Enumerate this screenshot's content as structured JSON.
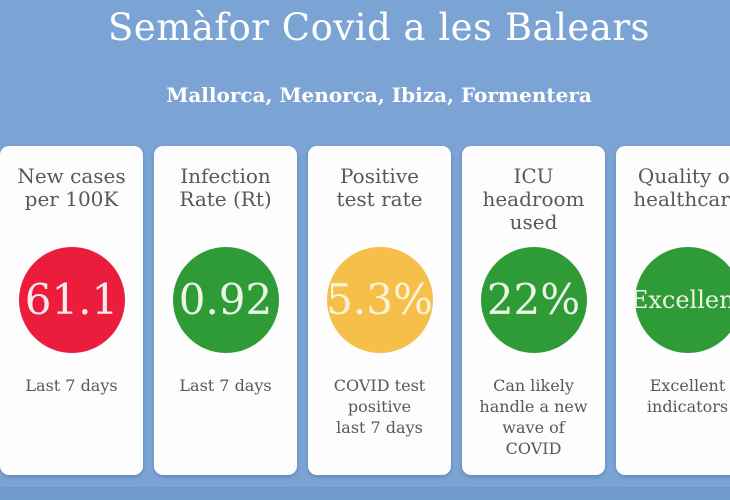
{
  "page": {
    "background_color": "#7BA4D5",
    "footer_strip_color": "#6F9ACB",
    "card_background": "#FDFDFD"
  },
  "header": {
    "title": "Semàfor Covid a les Balears",
    "subtitle": "Mallorca, Menorca, Ibiza, Formentera",
    "text_color": "#FFFFFF"
  },
  "status_colors": {
    "red": "#EC1C3D",
    "green": "#2F9B36",
    "yellow": "#F5BF4A"
  },
  "text_colors": {
    "card_heading": "#58585A",
    "card_description": "#58585A"
  },
  "cards": [
    {
      "title": "New cases\nper 100K",
      "value": "61.1",
      "status": "red",
      "circle_color": "#EC1C3D",
      "value_color": "#F8E9EC",
      "description": "Last 7 days"
    },
    {
      "title": "Infection\nRate (Rt)",
      "value": "0.92",
      "status": "green",
      "circle_color": "#2F9B36",
      "value_color": "#EAF5E5",
      "description": "Last 7 days"
    },
    {
      "title": "Positive\ntest rate",
      "value": "5.3%",
      "status": "yellow",
      "circle_color": "#F5BF4A",
      "value_color": "#FCF3D6",
      "description": "COVID test\npositive\nlast 7 days"
    },
    {
      "title": "ICU\nheadroom\nused",
      "value": "22%",
      "status": "green",
      "circle_color": "#2F9B36",
      "value_color": "#EAF5E5",
      "description": "Can likely\nhandle a new\nwave of\nCOVID"
    },
    {
      "title": "Quality of\nhealthcare",
      "value": "Excellent",
      "status": "green",
      "circle_color": "#2F9B36",
      "value_color": "#EAF5E5",
      "description": "Excellent\nindicators"
    }
  ]
}
